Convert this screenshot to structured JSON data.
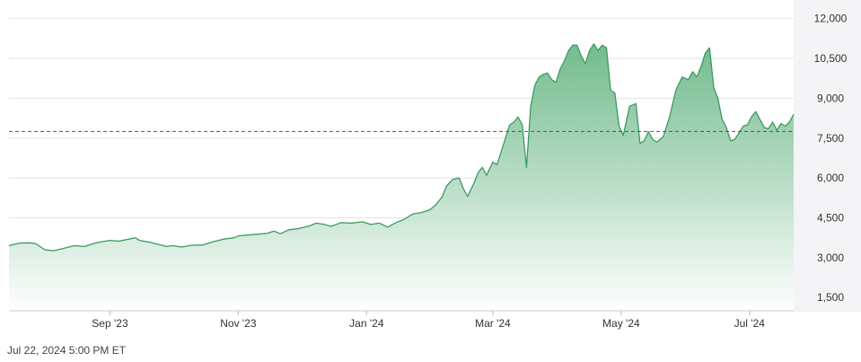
{
  "timestamp": "Jul 22, 2024 5:00 PM ET",
  "colors": {
    "line": "#3d9a60",
    "fill_top": "#5bb07a",
    "fill_bottom": "#ffffff",
    "grid": "#e3e3e3",
    "reference": "#555555",
    "axis_panel": "#f4f4f6"
  },
  "chart_data": {
    "type": "area",
    "title": "",
    "xlabel": "",
    "ylabel": "",
    "ylim": [
      1000,
      12700
    ],
    "xlim": [
      "2023-07-15",
      "2024-07-22"
    ],
    "grid": true,
    "reference_line": 7750,
    "y_ticks": [
      1500,
      3000,
      4500,
      6000,
      7500,
      9000,
      10500,
      12000
    ],
    "y_tick_labels": [
      "1,500",
      "3,000",
      "4,500",
      "6,000",
      "7,500",
      "9,000",
      "10,500",
      "12,000"
    ],
    "x_ticks": [
      {
        "label": "Sep '23",
        "date": "2023-09-01"
      },
      {
        "label": "Nov '23",
        "date": "2023-11-01"
      },
      {
        "label": "Jan '24",
        "date": "2024-01-01"
      },
      {
        "label": "Mar '24",
        "date": "2024-03-01"
      },
      {
        "label": "May '24",
        "date": "2024-05-01"
      },
      {
        "label": "Jul '24",
        "date": "2024-07-01"
      }
    ],
    "series": [
      {
        "points": [
          [
            "2023-07-15",
            3450
          ],
          [
            "2023-07-20",
            3550
          ],
          [
            "2023-07-25",
            3560
          ],
          [
            "2023-07-28",
            3520
          ],
          [
            "2023-08-01",
            3300
          ],
          [
            "2023-08-05",
            3260
          ],
          [
            "2023-08-10",
            3350
          ],
          [
            "2023-08-15",
            3450
          ],
          [
            "2023-08-20",
            3420
          ],
          [
            "2023-08-25",
            3550
          ],
          [
            "2023-08-28",
            3600
          ],
          [
            "2023-09-01",
            3650
          ],
          [
            "2023-09-05",
            3620
          ],
          [
            "2023-09-10",
            3700
          ],
          [
            "2023-09-13",
            3750
          ],
          [
            "2023-09-15",
            3650
          ],
          [
            "2023-09-20",
            3580
          ],
          [
            "2023-09-25",
            3480
          ],
          [
            "2023-09-28",
            3420
          ],
          [
            "2023-10-01",
            3450
          ],
          [
            "2023-10-05",
            3400
          ],
          [
            "2023-10-10",
            3470
          ],
          [
            "2023-10-15",
            3480
          ],
          [
            "2023-10-20",
            3600
          ],
          [
            "2023-10-25",
            3700
          ],
          [
            "2023-10-30",
            3750
          ],
          [
            "2023-11-01",
            3820
          ],
          [
            "2023-11-05",
            3850
          ],
          [
            "2023-11-10",
            3880
          ],
          [
            "2023-11-15",
            3920
          ],
          [
            "2023-11-18",
            4000
          ],
          [
            "2023-11-21",
            3900
          ],
          [
            "2023-11-25",
            4050
          ],
          [
            "2023-11-30",
            4100
          ],
          [
            "2023-12-05",
            4200
          ],
          [
            "2023-12-08",
            4300
          ],
          [
            "2023-12-12",
            4250
          ],
          [
            "2023-12-15",
            4180
          ],
          [
            "2023-12-20",
            4320
          ],
          [
            "2023-12-25",
            4300
          ],
          [
            "2023-12-30",
            4350
          ],
          [
            "2024-01-03",
            4250
          ],
          [
            "2024-01-07",
            4300
          ],
          [
            "2024-01-11",
            4150
          ],
          [
            "2024-01-15",
            4320
          ],
          [
            "2024-01-19",
            4450
          ],
          [
            "2024-01-23",
            4650
          ],
          [
            "2024-01-27",
            4700
          ],
          [
            "2024-01-31",
            4800
          ],
          [
            "2024-02-03",
            5000
          ],
          [
            "2024-02-06",
            5300
          ],
          [
            "2024-02-08",
            5700
          ],
          [
            "2024-02-11",
            5950
          ],
          [
            "2024-02-14",
            6000
          ],
          [
            "2024-02-16",
            5600
          ],
          [
            "2024-02-18",
            5300
          ],
          [
            "2024-02-21",
            5800
          ],
          [
            "2024-02-23",
            6200
          ],
          [
            "2024-02-25",
            6400
          ],
          [
            "2024-02-27",
            6100
          ],
          [
            "2024-03-01",
            6600
          ],
          [
            "2024-03-03",
            6500
          ],
          [
            "2024-03-05",
            7000
          ],
          [
            "2024-03-07",
            7500
          ],
          [
            "2024-03-09",
            8000
          ],
          [
            "2024-03-11",
            8100
          ],
          [
            "2024-03-13",
            8300
          ],
          [
            "2024-03-15",
            8000
          ],
          [
            "2024-03-17",
            6400
          ],
          [
            "2024-03-19",
            8700
          ],
          [
            "2024-03-21",
            9500
          ],
          [
            "2024-03-23",
            9800
          ],
          [
            "2024-03-25",
            9900
          ],
          [
            "2024-03-27",
            9950
          ],
          [
            "2024-03-29",
            9700
          ],
          [
            "2024-03-31",
            9600
          ],
          [
            "2024-04-02",
            10100
          ],
          [
            "2024-04-04",
            10400
          ],
          [
            "2024-04-06",
            10800
          ],
          [
            "2024-04-08",
            11000
          ],
          [
            "2024-04-10",
            11000
          ],
          [
            "2024-04-12",
            10600
          ],
          [
            "2024-04-14",
            10300
          ],
          [
            "2024-04-16",
            10800
          ],
          [
            "2024-04-18",
            11050
          ],
          [
            "2024-04-20",
            10800
          ],
          [
            "2024-04-22",
            11000
          ],
          [
            "2024-04-24",
            10900
          ],
          [
            "2024-04-26",
            9300
          ],
          [
            "2024-04-28",
            9200
          ],
          [
            "2024-04-30",
            7950
          ],
          [
            "2024-05-02",
            7600
          ],
          [
            "2024-05-05",
            8700
          ],
          [
            "2024-05-08",
            8800
          ],
          [
            "2024-05-10",
            7300
          ],
          [
            "2024-05-12",
            7400
          ],
          [
            "2024-05-14",
            7750
          ],
          [
            "2024-05-16",
            7450
          ],
          [
            "2024-05-18",
            7350
          ],
          [
            "2024-05-21",
            7550
          ],
          [
            "2024-05-24",
            8300
          ],
          [
            "2024-05-27",
            9300
          ],
          [
            "2024-05-30",
            9800
          ],
          [
            "2024-06-02",
            9700
          ],
          [
            "2024-06-04",
            10000
          ],
          [
            "2024-06-06",
            9800
          ],
          [
            "2024-06-08",
            10200
          ],
          [
            "2024-06-10",
            10700
          ],
          [
            "2024-06-12",
            10900
          ],
          [
            "2024-06-14",
            9400
          ],
          [
            "2024-06-16",
            9000
          ],
          [
            "2024-06-18",
            8200
          ],
          [
            "2024-06-20",
            7900
          ],
          [
            "2024-06-22",
            7400
          ],
          [
            "2024-06-24",
            7450
          ],
          [
            "2024-06-26",
            7700
          ],
          [
            "2024-06-28",
            7950
          ],
          [
            "2024-06-30",
            8000
          ],
          [
            "2024-07-02",
            8300
          ],
          [
            "2024-07-04",
            8500
          ],
          [
            "2024-07-06",
            8200
          ],
          [
            "2024-07-08",
            7900
          ],
          [
            "2024-07-10",
            7850
          ],
          [
            "2024-07-12",
            8100
          ],
          [
            "2024-07-14",
            7800
          ],
          [
            "2024-07-16",
            8050
          ],
          [
            "2024-07-18",
            7950
          ],
          [
            "2024-07-20",
            8100
          ],
          [
            "2024-07-22",
            8400
          ]
        ]
      }
    ]
  }
}
